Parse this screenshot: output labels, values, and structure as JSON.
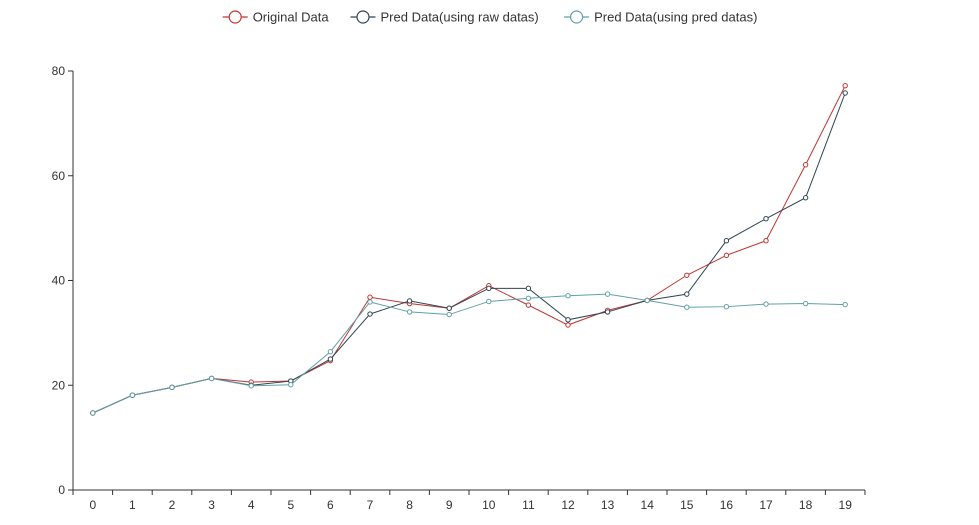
{
  "chart_data": {
    "type": "line",
    "title": "",
    "xlabel": "",
    "ylabel": "",
    "categories": [
      "0",
      "1",
      "2",
      "3",
      "4",
      "5",
      "6",
      "7",
      "8",
      "9",
      "10",
      "11",
      "12",
      "13",
      "14",
      "15",
      "16",
      "17",
      "18",
      "19"
    ],
    "ylim": [
      0,
      80
    ],
    "yticks": [
      0,
      20,
      40,
      60,
      80
    ],
    "legend_position": "top-center",
    "grid": false,
    "series": [
      {
        "name": "Original Data",
        "color": "#c23531",
        "values": [
          14.7,
          18.1,
          19.6,
          21.3,
          20.6,
          20.8,
          24.7,
          36.8,
          35.6,
          34.7,
          39.0,
          35.3,
          31.5,
          34.3,
          36.2,
          41.0,
          44.8,
          47.6,
          62.1,
          77.2
        ]
      },
      {
        "name": "Pred Data(using raw datas)",
        "color": "#2f4554",
        "values": [
          14.7,
          18.1,
          19.6,
          21.3,
          20.0,
          20.8,
          25.0,
          33.6,
          36.1,
          34.7,
          38.5,
          38.5,
          32.5,
          34.0,
          36.2,
          37.4,
          47.6,
          51.8,
          55.8,
          75.8
        ]
      },
      {
        "name": "Pred Data(using pred datas)",
        "color": "#61a0a8",
        "values": [
          14.7,
          18.1,
          19.6,
          21.3,
          19.9,
          20.1,
          26.4,
          35.9,
          34.0,
          33.5,
          36.0,
          36.6,
          37.1,
          37.4,
          36.2,
          34.9,
          35.0,
          35.5,
          35.6,
          35.4
        ]
      }
    ]
  }
}
